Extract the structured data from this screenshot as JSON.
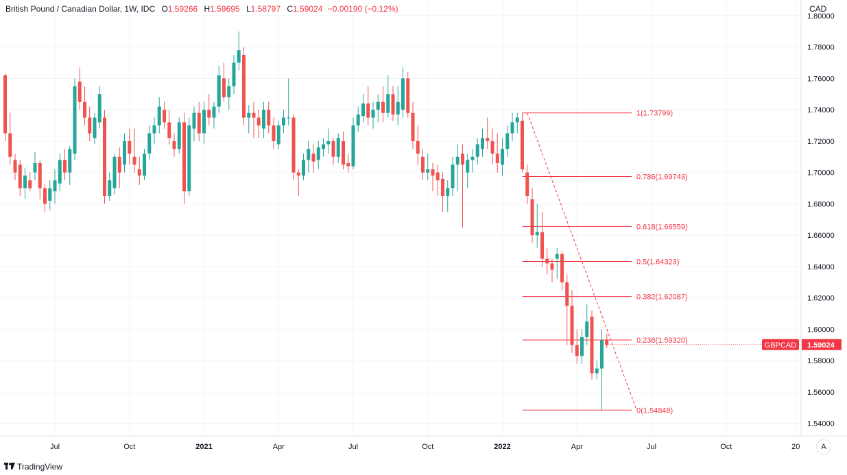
{
  "header": {
    "symbol": "British Pound / Canadian Dollar, 1W, IDC",
    "open_label": "O",
    "open": "1.59266",
    "high_label": "H",
    "high": "1.59695",
    "low_label": "L",
    "low": "1.58797",
    "close_label": "C",
    "close": "1.59024",
    "change": "−0.00190 (−0.12%)"
  },
  "price_axis": {
    "currency": "CAD"
  },
  "last_price": {
    "ticker": "GBPCAD",
    "value": "1.59024"
  },
  "footer": {
    "brand": "TradingView",
    "logo": "tradingview-logo-icon"
  },
  "controls": {
    "auto_scale": "A"
  },
  "colors": {
    "up": "#26a69a",
    "down": "#ef5350",
    "fib": "#f23645",
    "grid": "#f0f3fa"
  },
  "chart_data": {
    "type": "candlestick",
    "interval": "1W",
    "ylim": [
      1.532,
      1.81
    ],
    "grid": true,
    "y_ticks": [
      "1.54000",
      "1.56000",
      "1.58000",
      "1.60000",
      "1.62000",
      "1.64000",
      "1.66000",
      "1.68000",
      "1.70000",
      "1.72000",
      "1.74000",
      "1.76000",
      "1.78000",
      "1.80000"
    ],
    "x_ticks": [
      {
        "label": "Jul",
        "bar": 10,
        "bold": false
      },
      {
        "label": "Oct",
        "bar": 25,
        "bold": false
      },
      {
        "label": "2021",
        "bar": 40,
        "bold": true
      },
      {
        "label": "Apr",
        "bar": 55,
        "bold": false
      },
      {
        "label": "Jul",
        "bar": 70,
        "bold": false
      },
      {
        "label": "Oct",
        "bar": 85,
        "bold": false
      },
      {
        "label": "2022",
        "bar": 100,
        "bold": true
      },
      {
        "label": "Apr",
        "bar": 115,
        "bold": false
      },
      {
        "label": "Jul",
        "bar": 130,
        "bold": false
      },
      {
        "label": "Oct",
        "bar": 145,
        "bold": false
      },
      {
        "label": "20",
        "bar": 159,
        "bold": false
      }
    ],
    "candles": [
      [
        1.762,
        1.763,
        1.72,
        1.725
      ],
      [
        1.725,
        1.738,
        1.705,
        1.71
      ],
      [
        1.708,
        1.712,
        1.695,
        1.7
      ],
      [
        1.705,
        1.708,
        1.685,
        1.69
      ],
      [
        1.69,
        1.703,
        1.683,
        1.698
      ],
      [
        1.695,
        1.7,
        1.688,
        1.69
      ],
      [
        1.7,
        1.713,
        1.695,
        1.706
      ],
      [
        1.706,
        1.708,
        1.683,
        1.69
      ],
      [
        1.69,
        1.693,
        1.675,
        1.68
      ],
      [
        1.682,
        1.695,
        1.676,
        1.69
      ],
      [
        1.688,
        1.702,
        1.68,
        1.695
      ],
      [
        1.693,
        1.712,
        1.688,
        1.708
      ],
      [
        1.708,
        1.715,
        1.695,
        1.7
      ],
      [
        1.7,
        1.717,
        1.692,
        1.715
      ],
      [
        1.712,
        1.76,
        1.708,
        1.755
      ],
      [
        1.758,
        1.767,
        1.74,
        1.745
      ],
      [
        1.745,
        1.755,
        1.73,
        1.735
      ],
      [
        1.735,
        1.742,
        1.72,
        1.725
      ],
      [
        1.722,
        1.738,
        1.718,
        1.735
      ],
      [
        1.732,
        1.755,
        1.728,
        1.75
      ],
      [
        1.735,
        1.74,
        1.68,
        1.685
      ],
      [
        1.685,
        1.7,
        1.682,
        1.695
      ],
      [
        1.69,
        1.712,
        1.686,
        1.71
      ],
      [
        1.71,
        1.716,
        1.69,
        1.7
      ],
      [
        1.705,
        1.725,
        1.7,
        1.72
      ],
      [
        1.72,
        1.728,
        1.705,
        1.712
      ],
      [
        1.71,
        1.728,
        1.7,
        1.705
      ],
      [
        1.702,
        1.71,
        1.692,
        1.698
      ],
      [
        1.698,
        1.715,
        1.695,
        1.712
      ],
      [
        1.712,
        1.73,
        1.708,
        1.725
      ],
      [
        1.725,
        1.735,
        1.718,
        1.73
      ],
      [
        1.73,
        1.748,
        1.725,
        1.742
      ],
      [
        1.74,
        1.745,
        1.728,
        1.732
      ],
      [
        1.732,
        1.74,
        1.718,
        1.722
      ],
      [
        1.72,
        1.725,
        1.71,
        1.715
      ],
      [
        1.715,
        1.735,
        1.712,
        1.732
      ],
      [
        1.732,
        1.738,
        1.68,
        1.688
      ],
      [
        1.688,
        1.735,
        1.685,
        1.73
      ],
      [
        1.728,
        1.742,
        1.72,
        1.738
      ],
      [
        1.738,
        1.745,
        1.72,
        1.725
      ],
      [
        1.725,
        1.745,
        1.718,
        1.74
      ],
      [
        1.74,
        1.75,
        1.73,
        1.735
      ],
      [
        1.735,
        1.745,
        1.728,
        1.742
      ],
      [
        1.742,
        1.768,
        1.738,
        1.762
      ],
      [
        1.76,
        1.77,
        1.745,
        1.748
      ],
      [
        1.748,
        1.76,
        1.74,
        1.755
      ],
      [
        1.755,
        1.775,
        1.75,
        1.77
      ],
      [
        1.77,
        1.79,
        1.765,
        1.778
      ],
      [
        1.775,
        1.78,
        1.73,
        1.735
      ],
      [
        1.735,
        1.743,
        1.725,
        1.738
      ],
      [
        1.738,
        1.745,
        1.722,
        1.735
      ],
      [
        1.735,
        1.74,
        1.722,
        1.73
      ],
      [
        1.728,
        1.745,
        1.722,
        1.74
      ],
      [
        1.74,
        1.745,
        1.725,
        1.73
      ],
      [
        1.73,
        1.735,
        1.715,
        1.72
      ],
      [
        1.718,
        1.733,
        1.715,
        1.73
      ],
      [
        1.73,
        1.74,
        1.725,
        1.735
      ],
      [
        1.735,
        1.76,
        1.73,
        1.735
      ],
      [
        1.735,
        1.737,
        1.695,
        1.7
      ],
      [
        1.7,
        1.702,
        1.685,
        1.698
      ],
      [
        1.698,
        1.712,
        1.695,
        1.708
      ],
      [
        1.708,
        1.72,
        1.7,
        1.715
      ],
      [
        1.712,
        1.718,
        1.7,
        1.707
      ],
      [
        1.708,
        1.72,
        1.702,
        1.716
      ],
      [
        1.715,
        1.722,
        1.71,
        1.718
      ],
      [
        1.718,
        1.728,
        1.712,
        1.72
      ],
      [
        1.72,
        1.722,
        1.705,
        1.71
      ],
      [
        1.71,
        1.725,
        1.706,
        1.722
      ],
      [
        1.72,
        1.726,
        1.702,
        1.705
      ],
      [
        1.706,
        1.712,
        1.7,
        1.704
      ],
      [
        1.704,
        1.735,
        1.702,
        1.73
      ],
      [
        1.73,
        1.742,
        1.726,
        1.737
      ],
      [
        1.736,
        1.75,
        1.732,
        1.744
      ],
      [
        1.744,
        1.755,
        1.73,
        1.735
      ],
      [
        1.735,
        1.745,
        1.728,
        1.74
      ],
      [
        1.74,
        1.75,
        1.732,
        1.745
      ],
      [
        1.745,
        1.755,
        1.732,
        1.738
      ],
      [
        1.738,
        1.762,
        1.735,
        1.75
      ],
      [
        1.75,
        1.755,
        1.733,
        1.737
      ],
      [
        1.737,
        1.755,
        1.73,
        1.745
      ],
      [
        1.74,
        1.767,
        1.735,
        1.76
      ],
      [
        1.76,
        1.764,
        1.735,
        1.738
      ],
      [
        1.738,
        1.745,
        1.715,
        1.72
      ],
      [
        1.72,
        1.73,
        1.705,
        1.712
      ],
      [
        1.71,
        1.715,
        1.695,
        1.7
      ],
      [
        1.7,
        1.712,
        1.695,
        1.702
      ],
      [
        1.702,
        1.706,
        1.688,
        1.698
      ],
      [
        1.7,
        1.705,
        1.685,
        1.695
      ],
      [
        1.696,
        1.7,
        1.675,
        1.685
      ],
      [
        1.685,
        1.695,
        1.675,
        1.69
      ],
      [
        1.69,
        1.71,
        1.685,
        1.705
      ],
      [
        1.705,
        1.718,
        1.688,
        1.71
      ],
      [
        1.712,
        1.718,
        1.665,
        1.705
      ],
      [
        1.7,
        1.712,
        1.69,
        1.708
      ],
      [
        1.708,
        1.715,
        1.7,
        1.71
      ],
      [
        1.71,
        1.722,
        1.705,
        1.718
      ],
      [
        1.715,
        1.728,
        1.71,
        1.722
      ],
      [
        1.722,
        1.735,
        1.715,
        1.72
      ],
      [
        1.72,
        1.728,
        1.705,
        1.712
      ],
      [
        1.712,
        1.725,
        1.7,
        1.706
      ],
      [
        1.705,
        1.722,
        1.698,
        1.715
      ],
      [
        1.715,
        1.73,
        1.71,
        1.725
      ],
      [
        1.725,
        1.738,
        1.72,
        1.732
      ],
      [
        1.732,
        1.738,
        1.725,
        1.735
      ],
      [
        1.733,
        1.738,
        1.7,
        1.702
      ],
      [
        1.7,
        1.705,
        1.68,
        1.685
      ],
      [
        1.683,
        1.69,
        1.655,
        1.66
      ],
      [
        1.66,
        1.68,
        1.652,
        1.662
      ],
      [
        1.662,
        1.675,
        1.64,
        1.645
      ],
      [
        1.645,
        1.652,
        1.635,
        1.642
      ],
      [
        1.642,
        1.645,
        1.63,
        1.638
      ],
      [
        1.645,
        1.652,
        1.632,
        1.648
      ],
      [
        1.648,
        1.65,
        1.625,
        1.63
      ],
      [
        1.63,
        1.635,
        1.59,
        1.615
      ],
      [
        1.615,
        1.625,
        1.585,
        1.59
      ],
      [
        1.59,
        1.6,
        1.578,
        1.583
      ],
      [
        1.583,
        1.6,
        1.578,
        1.595
      ],
      [
        1.595,
        1.616,
        1.59,
        1.605
      ],
      [
        1.608,
        1.612,
        1.568,
        1.572
      ],
      [
        1.572,
        1.58,
        1.568,
        1.575
      ],
      [
        1.575,
        1.6,
        1.548,
        1.593
      ],
      [
        1.593,
        1.597,
        1.588,
        1.59
      ]
    ],
    "fibonacci": {
      "start_bar": 104,
      "line_end_bar": 126,
      "levels": [
        {
          "label": "1(1.73799)",
          "value": 1.73799
        },
        {
          "label": "0.786(1.69743)",
          "value": 1.69743
        },
        {
          "label": "0.618(1.66559)",
          "value": 1.66559
        },
        {
          "label": "0.5(1.64323)",
          "value": 1.64323
        },
        {
          "label": "0.382(1.62087)",
          "value": 1.62087
        },
        {
          "label": "0.236(1.59320)",
          "value": 1.5932
        },
        {
          "label": "0(1.54848)",
          "value": 1.54848
        }
      ],
      "trend_from": [
        105,
        1.73799
      ],
      "trend_to": [
        127,
        1.54848
      ]
    }
  }
}
